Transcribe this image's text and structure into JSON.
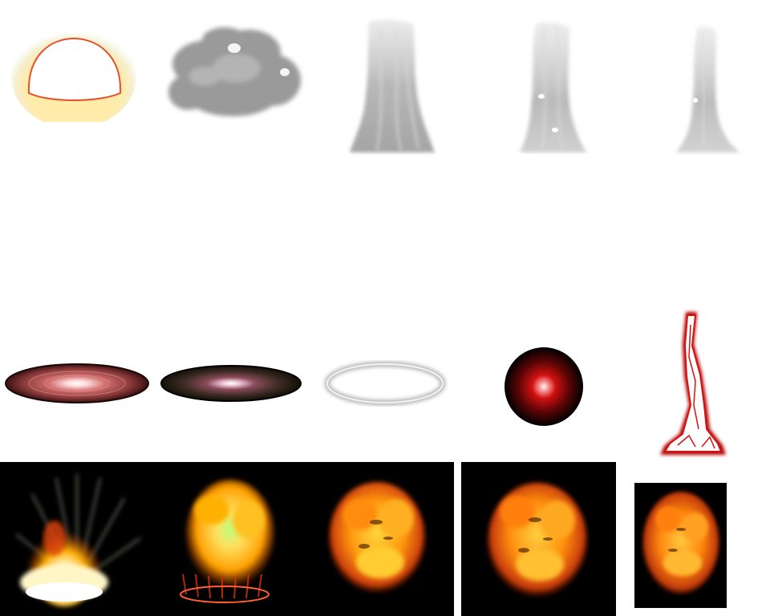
{
  "sheet": {
    "row1": [
      {
        "name": "shockwave-dome-sprite"
      },
      {
        "name": "smoke-cloud-sprite"
      },
      {
        "name": "smoke-column-sprite-large"
      },
      {
        "name": "smoke-column-sprite-medium"
      },
      {
        "name": "smoke-column-sprite-small"
      }
    ],
    "row2": [
      {
        "name": "red-ground-glow-disc"
      },
      {
        "name": "dark-ground-glow-disc"
      },
      {
        "name": "white-shock-ring"
      },
      {
        "name": "red-glow-orb"
      },
      {
        "name": "lightning-bolt-sprite"
      }
    ],
    "row3": [
      {
        "name": "explosion-frame-1"
      },
      {
        "name": "explosion-frame-2"
      },
      {
        "name": "explosion-frame-3"
      },
      {
        "name": "explosion-frame-4"
      },
      {
        "name": "explosion-frame-5"
      }
    ]
  },
  "colors": {
    "fire_core": "#fff6c8",
    "fire_mid": "#ffb000",
    "fire_outer": "#e0450a",
    "smoke": "#9a9a9a",
    "glow_red": "#c01010",
    "panel_bg": "#000000"
  }
}
